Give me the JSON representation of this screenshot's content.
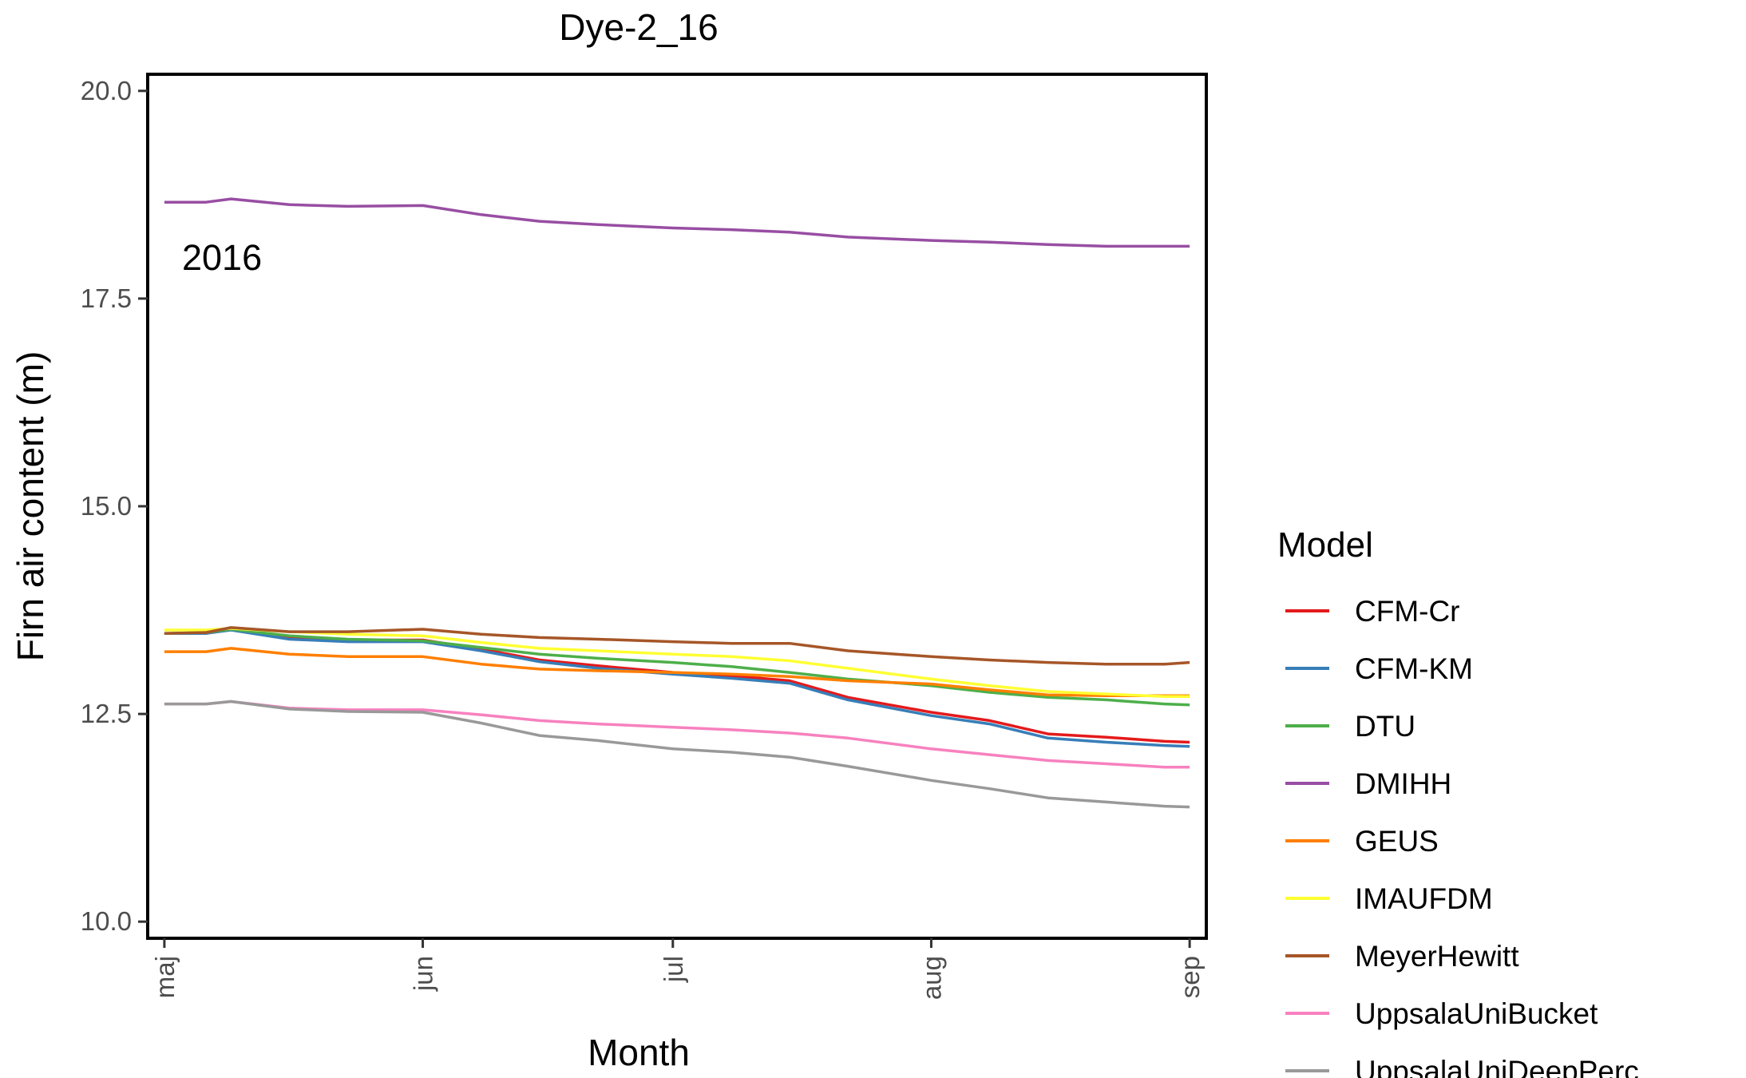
{
  "chart_data": {
    "type": "line",
    "title": "Dye-2_16",
    "xlabel": "Month",
    "ylabel": "Firn air content (m)",
    "annotation": "2016",
    "x_ticks": [
      "maj",
      "jun",
      "jul",
      "aug",
      "sep"
    ],
    "x_tick_dates": [
      "2016-05-01",
      "2016-06-01",
      "2016-07-01",
      "2016-08-01",
      "2016-09-01"
    ],
    "xlim": [
      "2016-04-29",
      "2016-09-03"
    ],
    "ylim": [
      9.8,
      20.2
    ],
    "y_ticks": [
      10.0,
      12.5,
      15.0,
      17.5,
      20.0
    ],
    "y_tick_labels": [
      "10.0",
      "12.5",
      "15.0",
      "17.5",
      "20.0"
    ],
    "grid": false,
    "legend": {
      "title": "Model",
      "position": "right"
    },
    "x": [
      "2016-05-01",
      "2016-05-06",
      "2016-05-09",
      "2016-05-16",
      "2016-05-23",
      "2016-06-01",
      "2016-06-08",
      "2016-06-15",
      "2016-06-22",
      "2016-07-01",
      "2016-07-08",
      "2016-07-15",
      "2016-07-22",
      "2016-08-01",
      "2016-08-08",
      "2016-08-15",
      "2016-08-22",
      "2016-08-29",
      "2016-09-01"
    ],
    "series": [
      {
        "name": "CFM-Cr",
        "color": "#E41A1C",
        "values": [
          13.47,
          13.47,
          13.52,
          13.42,
          13.39,
          13.39,
          13.28,
          13.15,
          13.08,
          13.0,
          12.96,
          12.9,
          12.7,
          12.52,
          12.42,
          12.26,
          12.22,
          12.17,
          12.16
        ]
      },
      {
        "name": "CFM-KM",
        "color": "#377EB8",
        "values": [
          13.47,
          13.47,
          13.51,
          13.4,
          13.37,
          13.37,
          13.26,
          13.13,
          13.05,
          12.98,
          12.93,
          12.87,
          12.67,
          12.48,
          12.38,
          12.21,
          12.16,
          12.12,
          12.11
        ]
      },
      {
        "name": "DTU",
        "color": "#4DAF4A",
        "values": [
          13.47,
          13.48,
          13.52,
          13.44,
          13.4,
          13.38,
          13.3,
          13.22,
          13.17,
          13.12,
          13.07,
          13.0,
          12.92,
          12.84,
          12.76,
          12.7,
          12.67,
          12.62,
          12.61
        ]
      },
      {
        "name": "DMIHH",
        "color": "#984EA3",
        "values": [
          18.66,
          18.66,
          18.7,
          18.63,
          18.61,
          18.62,
          18.51,
          18.43,
          18.39,
          18.35,
          18.33,
          18.3,
          18.24,
          18.2,
          18.18,
          18.15,
          18.13,
          18.13,
          18.13
        ]
      },
      {
        "name": "GEUS",
        "color": "#FF7F00",
        "values": [
          13.25,
          13.25,
          13.29,
          13.22,
          13.19,
          13.19,
          13.1,
          13.04,
          13.02,
          13.0,
          12.98,
          12.95,
          12.9,
          12.86,
          12.79,
          12.73,
          12.72,
          12.72,
          12.72
        ]
      },
      {
        "name": "IMAUFDM",
        "color": "#FFFF33",
        "values": [
          13.51,
          13.51,
          13.53,
          13.49,
          13.46,
          13.44,
          13.36,
          13.29,
          13.26,
          13.22,
          13.19,
          13.14,
          13.05,
          12.92,
          12.84,
          12.77,
          12.74,
          12.71,
          12.71
        ]
      },
      {
        "name": "MeyerHewitt",
        "color": "#A65628",
        "values": [
          13.47,
          13.48,
          13.54,
          13.49,
          13.49,
          13.52,
          13.46,
          13.42,
          13.4,
          13.37,
          13.35,
          13.35,
          13.26,
          13.19,
          13.15,
          13.12,
          13.1,
          13.1,
          13.12
        ]
      },
      {
        "name": "UppsalaUniBucket",
        "color": "#F781BF",
        "values": [
          12.62,
          12.62,
          12.65,
          12.57,
          12.55,
          12.55,
          12.49,
          12.42,
          12.38,
          12.34,
          12.31,
          12.27,
          12.21,
          12.08,
          12.01,
          11.94,
          11.9,
          11.86,
          11.86
        ]
      },
      {
        "name": "UppsalaUniDeepPerc",
        "color": "#999999",
        "values": [
          12.62,
          12.62,
          12.65,
          12.56,
          12.53,
          12.52,
          12.39,
          12.24,
          12.18,
          12.08,
          12.04,
          11.98,
          11.87,
          11.7,
          11.6,
          11.49,
          11.44,
          11.39,
          11.38
        ]
      }
    ]
  }
}
